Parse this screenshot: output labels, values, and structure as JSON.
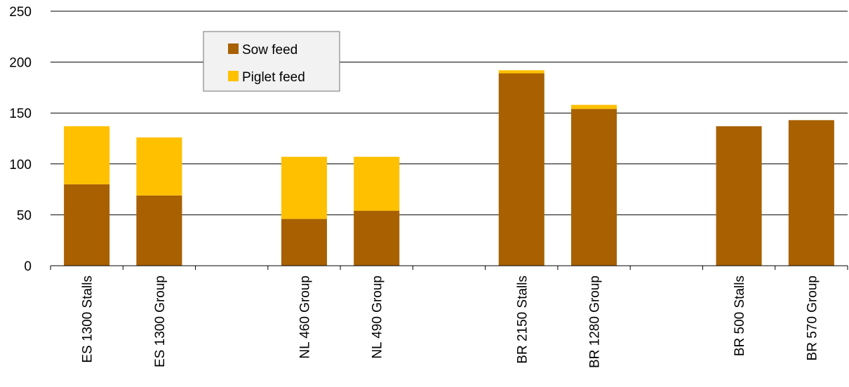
{
  "chart_data": {
    "type": "bar",
    "stacked": true,
    "categories": [
      "ES 1300 Stalls",
      "ES 1300 Group",
      "",
      "NL 460 Group",
      "NL 490 Group",
      "",
      "BR 2150 Stalls",
      "BR 1280 Group",
      "",
      "BR 500 Stalls",
      "BR 570 Group"
    ],
    "series": [
      {
        "name": "Sow feed",
        "color": "#A86000",
        "values": [
          80,
          69,
          0,
          46,
          54,
          0,
          189,
          154,
          0,
          137,
          143
        ]
      },
      {
        "name": "Piglet feed",
        "color": "#FFC000",
        "values": [
          57,
          57,
          0,
          61,
          53,
          0,
          3,
          4,
          0,
          0,
          0
        ]
      }
    ],
    "ylim": [
      0,
      250
    ],
    "yticks": [
      "0",
      "50",
      "100",
      "150",
      "200",
      "250"
    ],
    "grid": true,
    "legend_position": "top-left"
  }
}
